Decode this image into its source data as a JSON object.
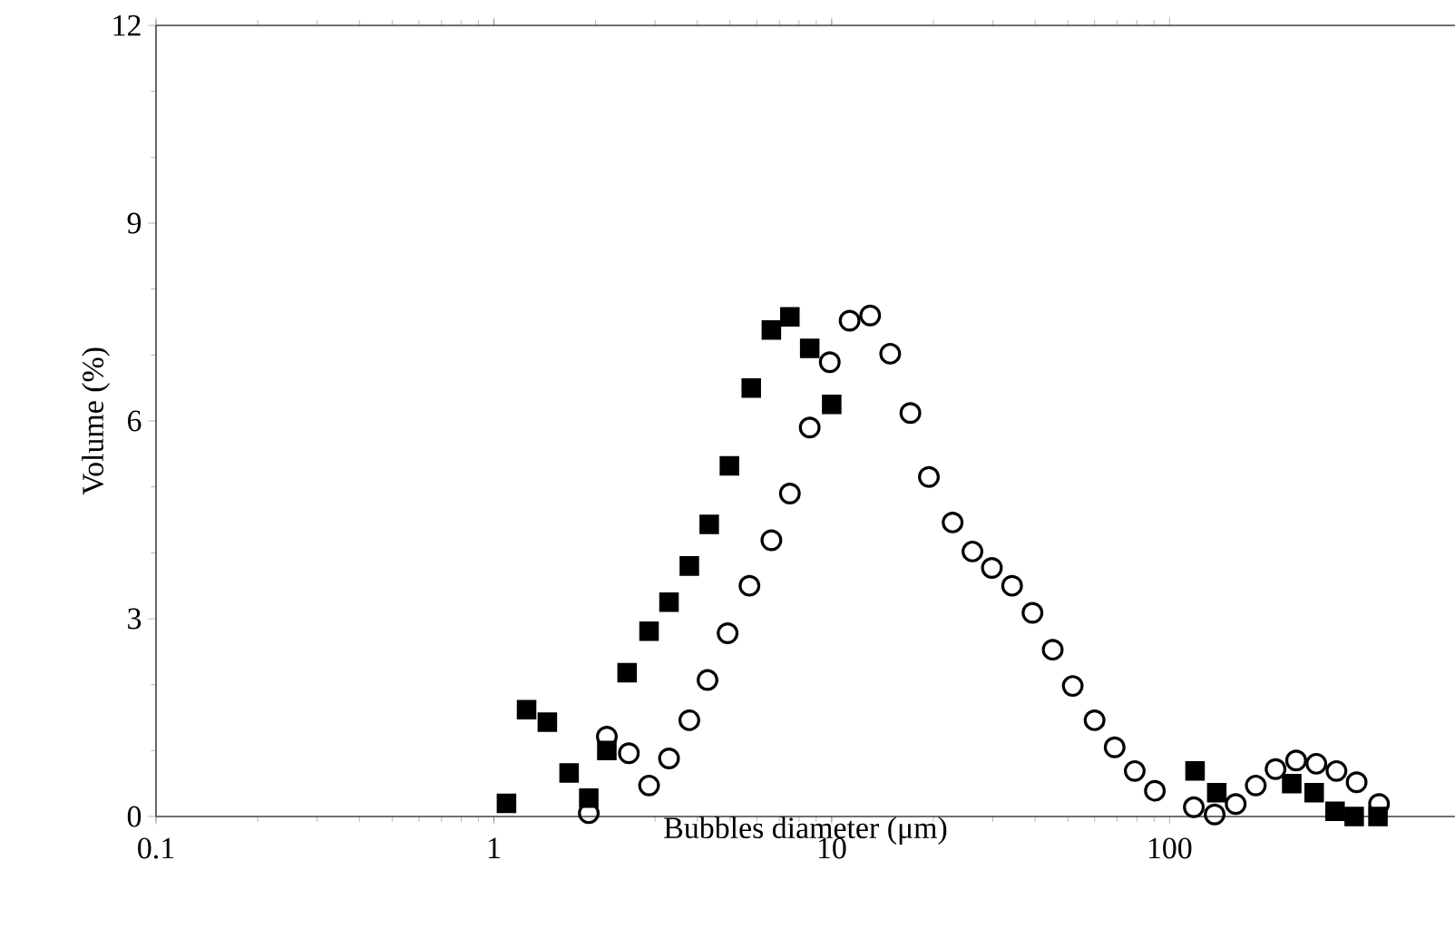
{
  "chart_data": {
    "type": "scatter",
    "xlabel": "Bubbles diameter (μm)",
    "ylabel": "Volume (%)",
    "log": "x",
    "xlim": [
      0.1,
      700
    ],
    "ylim": [
      0,
      12
    ],
    "xticks": [
      0.1,
      1,
      10,
      100
    ],
    "yticks": [
      0,
      3,
      6,
      9,
      12
    ],
    "grid": false,
    "series": [
      {
        "color": "#000000",
        "marker": "square",
        "x": [
          1.09,
          1.25,
          1.44,
          1.67,
          1.91,
          2.16,
          2.48,
          2.88,
          3.3,
          3.79,
          4.34,
          4.98,
          5.78,
          6.63,
          7.52,
          8.61,
          10.0,
          119,
          138,
          230,
          268,
          309,
          352,
          414
        ],
        "values": [
          0.2,
          1.62,
          1.43,
          0.66,
          0.28,
          1.0,
          2.18,
          2.81,
          3.25,
          3.8,
          4.43,
          5.32,
          6.5,
          7.38,
          7.58,
          7.1,
          6.25,
          0.69,
          0.36,
          0.5,
          0.36,
          0.08,
          0.0,
          0.0
        ]
      },
      {
        "color": "#000000",
        "marker": "circle",
        "x": [
          1.91,
          2.16,
          2.51,
          2.88,
          3.3,
          3.79,
          4.29,
          4.92,
          5.71,
          6.63,
          7.52,
          8.61,
          9.87,
          11.3,
          13.0,
          14.9,
          17.1,
          19.4,
          22.8,
          26.1,
          29.8,
          34.2,
          39.3,
          45.1,
          51.7,
          60.0,
          68.8,
          78.9,
          90.5,
          118,
          136,
          157,
          180,
          206,
          237,
          272,
          312,
          358,
          417
        ],
        "values": [
          0.05,
          1.21,
          0.96,
          0.47,
          0.88,
          1.46,
          2.07,
          2.78,
          3.5,
          4.19,
          4.9,
          5.9,
          6.89,
          7.52,
          7.6,
          7.02,
          6.12,
          5.15,
          4.46,
          4.02,
          3.77,
          3.5,
          3.09,
          2.53,
          1.98,
          1.46,
          1.05,
          0.69,
          0.39,
          0.14,
          0.03,
          0.19,
          0.47,
          0.72,
          0.85,
          0.8,
          0.69,
          0.52,
          0.19
        ]
      }
    ]
  }
}
